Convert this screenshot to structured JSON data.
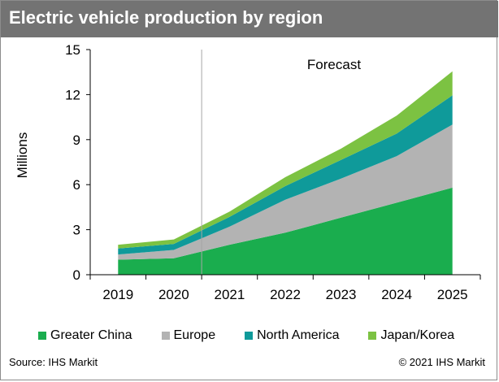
{
  "header": {
    "title": "Electric vehicle production by region"
  },
  "footer": {
    "source": "Source: IHS Markit",
    "copyright": "© 2021 IHS Markit"
  },
  "chart_data": {
    "type": "area",
    "stacked": true,
    "title": "Electric vehicle production by region",
    "xlabel": "",
    "ylabel": "Millions",
    "categories": [
      "2019",
      "2020",
      "2021",
      "2022",
      "2023",
      "2024",
      "2025"
    ],
    "ylim": [
      0,
      15
    ],
    "yticks": [
      0,
      3,
      6,
      9,
      12,
      15
    ],
    "grid": false,
    "legend_position": "bottom",
    "annotations": [
      {
        "text": "Forecast",
        "divider_between": [
          "2020",
          "2021"
        ]
      }
    ],
    "series": [
      {
        "name": "Greater China",
        "color": "#1aad4e",
        "values": [
          1.0,
          1.1,
          2.0,
          2.8,
          3.8,
          4.8,
          5.8
        ]
      },
      {
        "name": "Europe",
        "color": "#b3b3b3",
        "values": [
          0.35,
          0.55,
          1.2,
          2.2,
          2.6,
          3.1,
          4.2
        ]
      },
      {
        "name": "North America",
        "color": "#0f9a9a",
        "values": [
          0.4,
          0.4,
          0.65,
          0.9,
          1.25,
          1.5,
          1.95
        ]
      },
      {
        "name": "Japan/Korea",
        "color": "#7cc242",
        "values": [
          0.25,
          0.3,
          0.35,
          0.6,
          0.75,
          1.2,
          1.6
        ]
      }
    ]
  }
}
